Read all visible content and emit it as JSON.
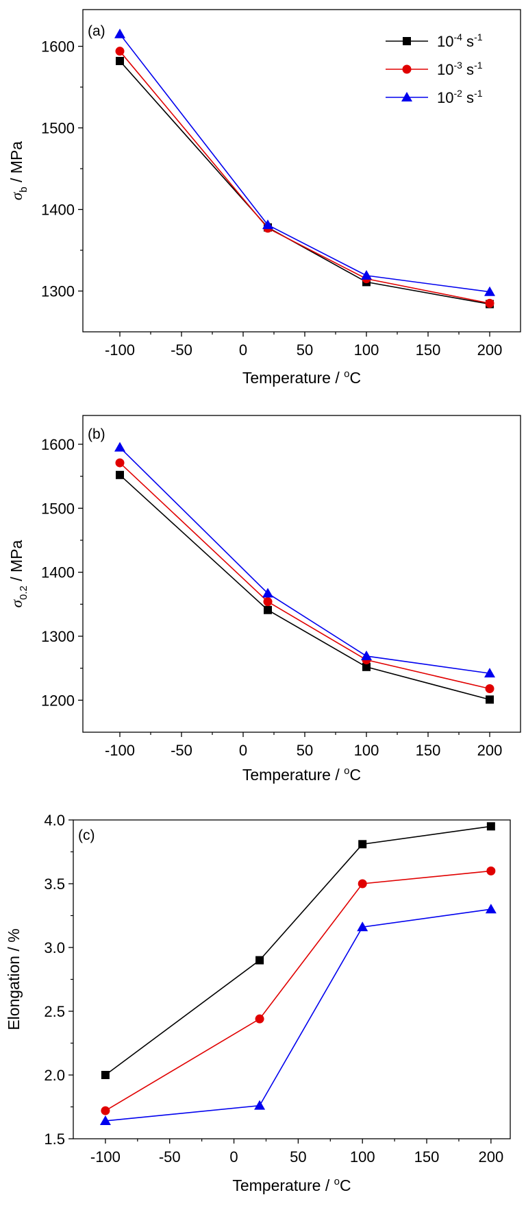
{
  "legend": [
    {
      "base": "10",
      "exp": "-4",
      "unit": "s",
      "unit_exp": "-1",
      "color": "#000000",
      "marker": "square"
    },
    {
      "base": "10",
      "exp": "-3",
      "unit": "s",
      "unit_exp": "-1",
      "color": "#e00000",
      "marker": "circle"
    },
    {
      "base": "10",
      "exp": "-2",
      "unit": "s",
      "unit_exp": "-1",
      "color": "#0000ee",
      "marker": "triangle"
    }
  ],
  "chart_data": [
    {
      "type": "line",
      "panel_label": "(a)",
      "xlabel": {
        "main": "Temperature / ",
        "sup": "o",
        "tail": "C"
      },
      "ylabel": {
        "main": "σ",
        "sub": "b",
        "tail": " / MPa"
      },
      "x": [
        -100,
        20,
        100,
        200
      ],
      "xticks": [
        -100,
        -50,
        0,
        50,
        100,
        150,
        200
      ],
      "yticks": [
        1300,
        1400,
        1500,
        1600
      ],
      "xlim": [
        -130,
        225
      ],
      "ylim": [
        1250,
        1645
      ],
      "legend_position": "top-right",
      "series": [
        {
          "name": "10^-4 s^-1",
          "color": "#000000",
          "marker": "square",
          "values": [
            1582,
            1378,
            1311,
            1284
          ]
        },
        {
          "name": "10^-3 s^-1",
          "color": "#e00000",
          "marker": "circle",
          "values": [
            1594,
            1377,
            1315,
            1285
          ]
        },
        {
          "name": "10^-2 s^-1",
          "color": "#0000ee",
          "marker": "triangle",
          "values": [
            1615,
            1381,
            1319,
            1299
          ]
        }
      ]
    },
    {
      "type": "line",
      "panel_label": "(b)",
      "xlabel": {
        "main": "Temperature / ",
        "sup": "o",
        "tail": "C"
      },
      "ylabel": {
        "main": "σ",
        "sub": "0.2",
        "tail": " / MPa"
      },
      "x": [
        -100,
        20,
        100,
        200
      ],
      "xticks": [
        -100,
        -50,
        0,
        50,
        100,
        150,
        200
      ],
      "yticks": [
        1200,
        1300,
        1400,
        1500,
        1600
      ],
      "xlim": [
        -130,
        225
      ],
      "ylim": [
        1150,
        1645
      ],
      "series": [
        {
          "name": "10^-4 s^-1",
          "color": "#000000",
          "marker": "square",
          "values": [
            1552,
            1341,
            1252,
            1201
          ]
        },
        {
          "name": "10^-3 s^-1",
          "color": "#e00000",
          "marker": "circle",
          "values": [
            1571,
            1354,
            1263,
            1218
          ]
        },
        {
          "name": "10^-2 s^-1",
          "color": "#0000ee",
          "marker": "triangle",
          "values": [
            1595,
            1367,
            1269,
            1242
          ]
        }
      ]
    },
    {
      "type": "line",
      "panel_label": "(c)",
      "xlabel": {
        "main": "Temperature / ",
        "sup": "o",
        "tail": "C"
      },
      "ylabel": {
        "main": "Elongation / %",
        "sub": "",
        "tail": ""
      },
      "x": [
        -100,
        20,
        100,
        200
      ],
      "xticks": [
        -100,
        -50,
        0,
        50,
        100,
        150,
        200
      ],
      "yticks": [
        "1.5",
        "2.0",
        "2.5",
        "3.0",
        "3.5",
        "4.0"
      ],
      "xlim": [
        -125,
        215
      ],
      "ylim": [
        1.5,
        4.0
      ],
      "series": [
        {
          "name": "10^-4 s^-1",
          "color": "#000000",
          "marker": "square",
          "values": [
            2.0,
            2.9,
            3.81,
            3.95
          ]
        },
        {
          "name": "10^-3 s^-1",
          "color": "#e00000",
          "marker": "circle",
          "values": [
            1.72,
            2.44,
            3.5,
            3.6
          ]
        },
        {
          "name": "10^-2 s^-1",
          "color": "#0000ee",
          "marker": "triangle",
          "values": [
            1.64,
            1.76,
            3.16,
            3.3
          ]
        }
      ]
    }
  ]
}
